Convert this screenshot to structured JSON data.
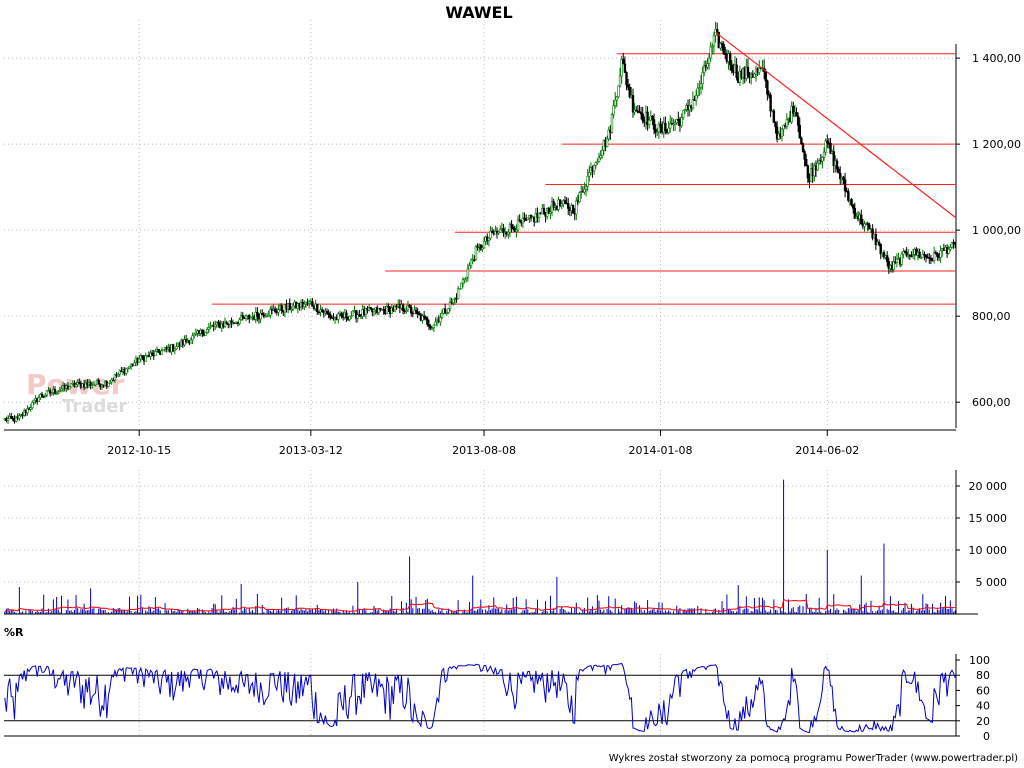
{
  "chart_data": [
    {
      "type": "candlestick",
      "title": "WAWEL",
      "x_tick_labels": [
        "2012-10-15",
        "2013-03-12",
        "2013-08-08",
        "2014-01-08",
        "2014-06-02"
      ],
      "y_ticks": [
        600,
        800,
        1000,
        1200,
        1400
      ],
      "y_tick_labels": [
        "600,00",
        "800,00",
        "1 000,00",
        "1 200,00",
        "1 400,00"
      ],
      "ylim": [
        540,
        1470
      ],
      "grid": true,
      "colors": {
        "up": "#007a00",
        "down": "#000000",
        "support_lines": "#ff2020",
        "trendline": "#ff2020"
      },
      "price_anchors": [
        {
          "date": "2012-07-01",
          "close": 560
        },
        {
          "date": "2012-07-20",
          "close": 615
        },
        {
          "date": "2012-08-20",
          "close": 640
        },
        {
          "date": "2012-09-15",
          "close": 645
        },
        {
          "date": "2012-10-15",
          "close": 700
        },
        {
          "date": "2012-11-15",
          "close": 730
        },
        {
          "date": "2012-12-15",
          "close": 775
        },
        {
          "date": "2013-01-15",
          "close": 795
        },
        {
          "date": "2013-02-10",
          "close": 815
        },
        {
          "date": "2013-03-12",
          "close": 830
        },
        {
          "date": "2013-04-01",
          "close": 795
        },
        {
          "date": "2013-05-01",
          "close": 810
        },
        {
          "date": "2013-06-01",
          "close": 820
        },
        {
          "date": "2013-06-25",
          "close": 778
        },
        {
          "date": "2013-07-15",
          "close": 840
        },
        {
          "date": "2013-08-01",
          "close": 950
        },
        {
          "date": "2013-08-15",
          "close": 990
        },
        {
          "date": "2013-09-15",
          "close": 1020
        },
        {
          "date": "2013-10-10",
          "close": 1060
        },
        {
          "date": "2013-10-25",
          "close": 1050
        },
        {
          "date": "2013-11-10",
          "close": 1150
        },
        {
          "date": "2013-11-25",
          "close": 1220
        },
        {
          "date": "2013-12-05",
          "close": 1390
        },
        {
          "date": "2013-12-15",
          "close": 1290
        },
        {
          "date": "2014-01-08",
          "close": 1230
        },
        {
          "date": "2014-01-25",
          "close": 1260
        },
        {
          "date": "2014-02-10",
          "close": 1320
        },
        {
          "date": "2014-02-25",
          "close": 1450
        },
        {
          "date": "2014-03-15",
          "close": 1360
        },
        {
          "date": "2014-04-05",
          "close": 1370
        },
        {
          "date": "2014-04-20",
          "close": 1210
        },
        {
          "date": "2014-05-05",
          "close": 1290
        },
        {
          "date": "2014-05-15",
          "close": 1120
        },
        {
          "date": "2014-06-02",
          "close": 1200
        },
        {
          "date": "2014-06-25",
          "close": 1040
        },
        {
          "date": "2014-07-10",
          "close": 990
        },
        {
          "date": "2014-07-25",
          "close": 910
        },
        {
          "date": "2014-08-10",
          "close": 950
        },
        {
          "date": "2014-09-01",
          "close": 935
        },
        {
          "date": "2014-09-15",
          "close": 960
        }
      ],
      "support_levels": [
        {
          "value": 1410,
          "from": "2013-12-01",
          "to": "2014-09-20"
        },
        {
          "value": 1200,
          "from": "2013-10-15",
          "to": "2014-09-20"
        },
        {
          "value": 1106,
          "from": "2013-10-01",
          "to": "2014-09-20"
        },
        {
          "value": 995,
          "from": "2013-07-15",
          "to": "2014-09-20"
        },
        {
          "value": 905,
          "from": "2013-05-15",
          "to": "2014-09-20"
        },
        {
          "value": 828,
          "from": "2012-12-15",
          "to": "2014-09-20"
        }
      ],
      "trendline": [
        {
          "date": "2014-02-25",
          "value": 1460
        },
        {
          "date": "2014-09-20",
          "value": 1030
        }
      ],
      "watermark": [
        "Power",
        "Trader"
      ]
    },
    {
      "type": "bar",
      "title": "",
      "y_ticks": [
        5000,
        10000,
        15000,
        20000
      ],
      "y_tick_labels": [
        "5 000",
        "10 000",
        "15 000",
        "20 000"
      ],
      "ylim": [
        0,
        22500
      ],
      "grid": true,
      "colors": {
        "bars": "#0000cc",
        "average": "#ff0000"
      },
      "typical_volume": 700,
      "spikes": [
        {
          "date": "2012-07-03",
          "value": 4200
        },
        {
          "date": "2012-09-01",
          "value": 4000
        },
        {
          "date": "2013-01-10",
          "value": 4700
        },
        {
          "date": "2013-04-20",
          "value": 5000
        },
        {
          "date": "2013-06-05",
          "value": 9000
        },
        {
          "date": "2013-07-30",
          "value": 6000
        },
        {
          "date": "2013-10-10",
          "value": 5800
        },
        {
          "date": "2014-03-15",
          "value": 4500
        },
        {
          "date": "2014-04-24",
          "value": 21000
        },
        {
          "date": "2014-06-02",
          "value": 10000
        },
        {
          "date": "2014-07-20",
          "value": 11000
        },
        {
          "date": "2014-07-01",
          "value": 6000
        }
      ]
    },
    {
      "type": "line",
      "title": "%R",
      "y_ticks": [
        0,
        20,
        40,
        60,
        80,
        100
      ],
      "y_tick_labels": [
        "0",
        "20",
        "40",
        "60",
        "80",
        "100"
      ],
      "ylim": [
        0,
        100
      ],
      "levels": [
        20,
        80
      ],
      "colors": {
        "line": "#0000cc",
        "levels": "#000000"
      }
    }
  ],
  "footer": "Wykres został stworzony za pomocą programu PowerTrader (www.powertrader.pl)"
}
